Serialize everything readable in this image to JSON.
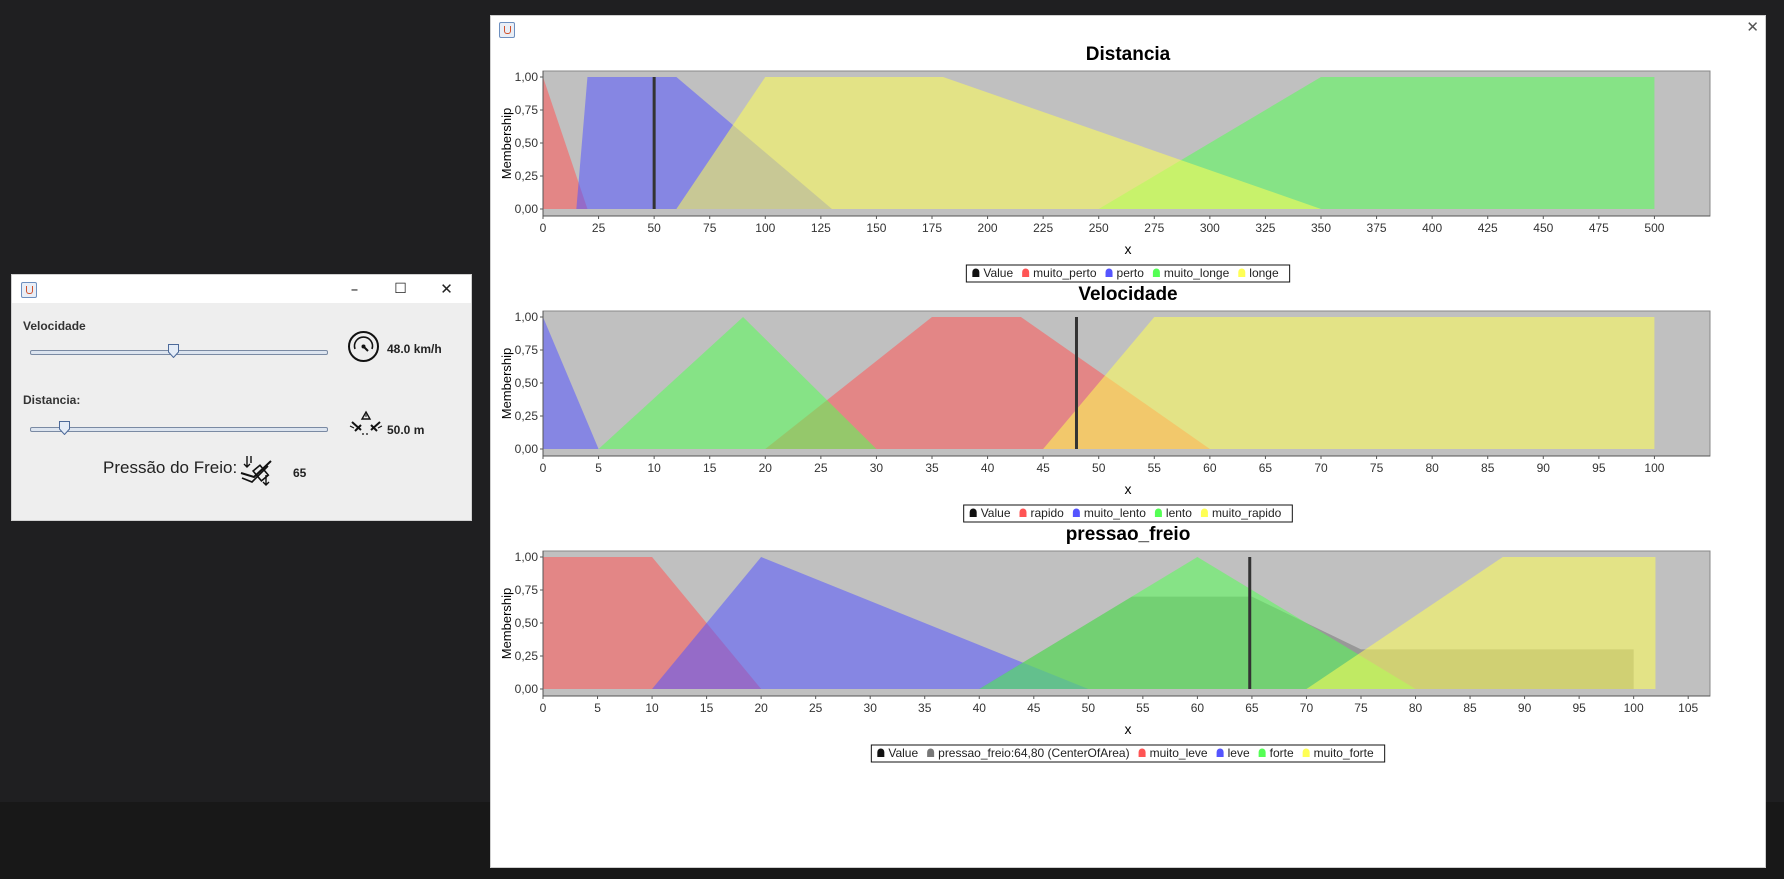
{
  "control_window": {
    "velocidade_label": "Velocidade",
    "distancia_label": "Distancia:",
    "velocidade_value": "48.0 km/h",
    "distancia_value": "50.0 m",
    "pressao_label": "Pressão do Freio:",
    "pressao_value": "65",
    "velocidade_slider": {
      "min": 0,
      "max": 100,
      "value": 48
    },
    "distancia_slider": {
      "min": 0,
      "max": 500,
      "value": 50
    },
    "icons": [
      "java-icon",
      "speedometer-icon",
      "distance-icon",
      "brake-icon"
    ],
    "buttons": {
      "minimize": "–",
      "maximize": "☐",
      "close": "✕"
    }
  },
  "chart_window": {
    "close": "✕",
    "icon": "java-icon"
  },
  "chart_data": [
    {
      "type": "area",
      "title": "Distancia",
      "xlabel": "x",
      "ylabel": "Membership",
      "xlim": [
        0,
        525
      ],
      "ylim": [
        0,
        1
      ],
      "xticks": [
        0,
        25,
        50,
        75,
        100,
        125,
        150,
        175,
        200,
        225,
        250,
        275,
        300,
        325,
        350,
        375,
        400,
        425,
        450,
        475,
        500
      ],
      "yticks": [
        "0,00",
        "0,25",
        "0,50",
        "0,75",
        "1,00"
      ],
      "value": 50,
      "series": [
        {
          "name": "muito_perto",
          "color": "#ff5555",
          "points": [
            [
              0,
              1
            ],
            [
              20,
              0
            ]
          ]
        },
        {
          "name": "perto",
          "color": "#5555ff",
          "points": [
            [
              15,
              0
            ],
            [
              20,
              1
            ],
            [
              60,
              1
            ],
            [
              130,
              0
            ]
          ]
        },
        {
          "name": "muito_longe",
          "color": "#55ff55",
          "points": [
            [
              250,
              0
            ],
            [
              350,
              1
            ],
            [
              500,
              1
            ],
            [
              500,
              0
            ]
          ]
        },
        {
          "name": "longe",
          "color": "#ffff55",
          "points": [
            [
              60,
              0
            ],
            [
              100,
              1
            ],
            [
              180,
              1
            ],
            [
              350,
              0
            ]
          ]
        }
      ],
      "legend": [
        "Value",
        "muito_perto",
        "perto",
        "muito_longe",
        "longe"
      ]
    },
    {
      "type": "area",
      "title": "Velocidade",
      "xlabel": "x",
      "ylabel": "Membership",
      "xlim": [
        0,
        105
      ],
      "ylim": [
        0,
        1
      ],
      "xticks": [
        0,
        5,
        10,
        15,
        20,
        25,
        30,
        35,
        40,
        45,
        50,
        55,
        60,
        65,
        70,
        75,
        80,
        85,
        90,
        95,
        100
      ],
      "yticks": [
        "0,00",
        "0,25",
        "0,50",
        "0,75",
        "1,00"
      ],
      "value": 48,
      "series": [
        {
          "name": "rapido",
          "color": "#ff5555",
          "points": [
            [
              20,
              0
            ],
            [
              35,
              1
            ],
            [
              43,
              1
            ],
            [
              60,
              0
            ]
          ]
        },
        {
          "name": "muito_lento",
          "color": "#5555ff",
          "points": [
            [
              0,
              1
            ],
            [
              5,
              0
            ]
          ]
        },
        {
          "name": "lento",
          "color": "#55ff55",
          "points": [
            [
              5,
              0
            ],
            [
              18,
              1
            ],
            [
              30,
              0
            ]
          ]
        },
        {
          "name": "muito_rapido",
          "color": "#ffff55",
          "points": [
            [
              45,
              0
            ],
            [
              55,
              1
            ],
            [
              100,
              1
            ],
            [
              100,
              0
            ]
          ]
        }
      ],
      "legend": [
        "Value",
        "rapido",
        "muito_lento",
        "lento",
        "muito_rapido"
      ]
    },
    {
      "type": "area",
      "title": "pressao_freio",
      "xlabel": "x",
      "ylabel": "Membership",
      "xlim": [
        0,
        107
      ],
      "ylim": [
        0,
        1
      ],
      "xticks": [
        0,
        5,
        10,
        15,
        20,
        25,
        30,
        35,
        40,
        45,
        50,
        55,
        60,
        65,
        70,
        75,
        80,
        85,
        90,
        95,
        100,
        105
      ],
      "yticks": [
        "0,00",
        "0,25",
        "0,50",
        "0,75",
        "1,00"
      ],
      "value": 64.8,
      "series": [
        {
          "name": "pressao_freio",
          "color": "#777777",
          "points": [
            [
              40,
              0
            ],
            [
              54,
              0.7
            ],
            [
              65,
              0.7
            ],
            [
              75,
              0.3
            ],
            [
              100,
              0.3
            ],
            [
              100,
              0
            ]
          ]
        },
        {
          "name": "muito_leve",
          "color": "#ff5555",
          "points": [
            [
              0,
              1
            ],
            [
              10,
              1
            ],
            [
              20,
              0
            ]
          ]
        },
        {
          "name": "leve",
          "color": "#5555ff",
          "points": [
            [
              10,
              0
            ],
            [
              20,
              1
            ],
            [
              50,
              0
            ]
          ]
        },
        {
          "name": "forte",
          "color": "#55ff55",
          "points": [
            [
              40,
              0
            ],
            [
              60,
              1
            ],
            [
              80,
              0
            ]
          ]
        },
        {
          "name": "muito_forte",
          "color": "#ffff55",
          "points": [
            [
              70,
              0
            ],
            [
              88,
              1
            ],
            [
              102,
              1
            ],
            [
              102,
              0
            ]
          ]
        }
      ],
      "legend": [
        "Value",
        "pressao_freio:64,80 (CenterOfArea)",
        "muito_leve",
        "leve",
        "forte",
        "muito_forte"
      ]
    }
  ]
}
